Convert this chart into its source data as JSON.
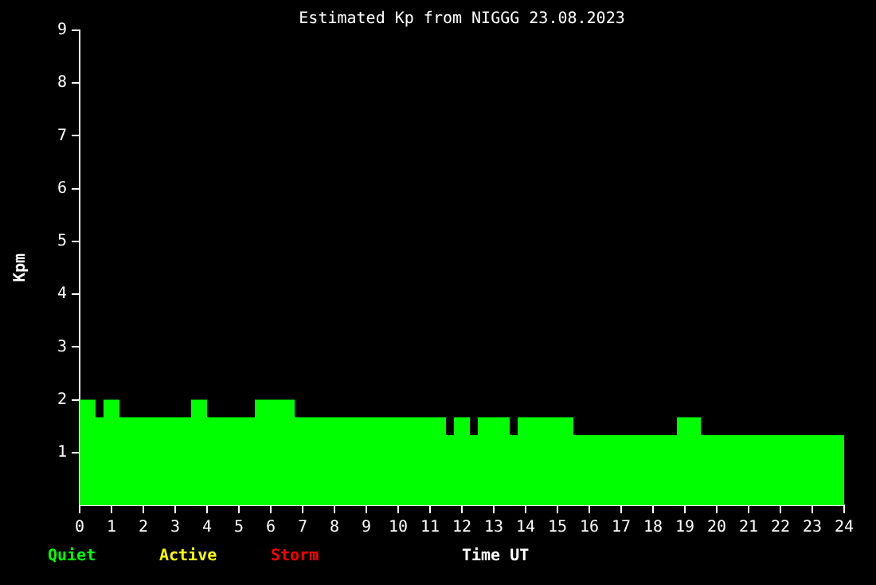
{
  "chart_data": {
    "type": "histogram",
    "title": "Estimated Kp from NIGGG 23.08.2023",
    "xlabel": "Time UT",
    "ylabel": "Kpm",
    "bins": [
      0,
      0.5,
      0.75,
      1.25,
      3.5,
      4,
      5.5,
      6.75,
      11.5,
      11.75,
      12.25,
      12.5,
      13.5,
      13.75,
      15.5,
      18.75,
      19.5,
      24
    ],
    "series": [
      {
        "name": "Quiet",
        "color": "#00ff00",
        "values": [
          2,
          1.67,
          2,
          1.67,
          2,
          1.67,
          2,
          1.67,
          1.33,
          1.67,
          1.33,
          1.67,
          1.33,
          1.67,
          1.33,
          1.67,
          1.33
        ]
      }
    ],
    "annotations": [
      "Active",
      "Storm"
    ],
    "legend": "bottom left",
    "xlim": [
      0,
      24
    ],
    "xticks": [
      0,
      1,
      2,
      3,
      4,
      5,
      6,
      7,
      8,
      9,
      10,
      11,
      12,
      13,
      14,
      15,
      16,
      17,
      18,
      19,
      20,
      21,
      22,
      23,
      24
    ],
    "ylim": [
      0,
      9
    ],
    "yticks": [
      1,
      2,
      3,
      4,
      5,
      6,
      7,
      8,
      9
    ]
  }
}
